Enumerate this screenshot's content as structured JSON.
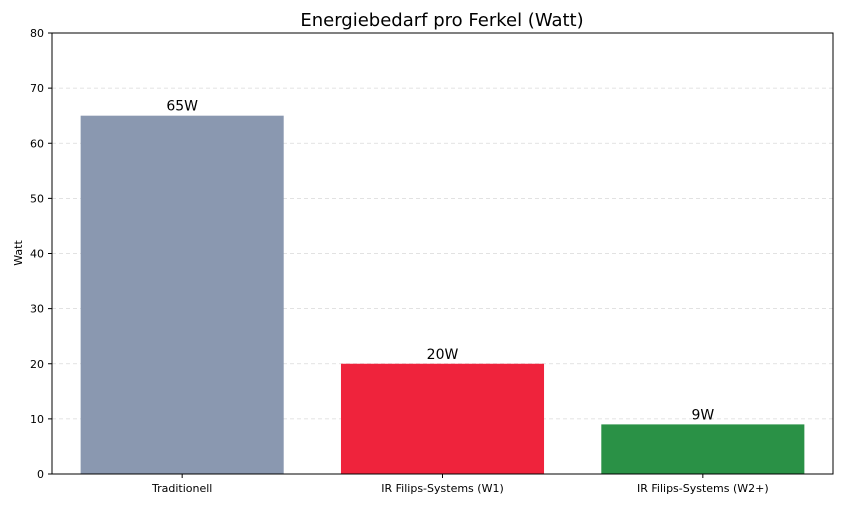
{
  "chart_data": {
    "type": "bar",
    "title": "Energiebedarf pro Ferkel (Watt)",
    "xlabel": "",
    "ylabel": "Watt",
    "ylim": [
      0,
      80
    ],
    "yticks": [
      0,
      10,
      20,
      30,
      40,
      50,
      60,
      70,
      80
    ],
    "grid": true,
    "categories": [
      "Traditionell",
      "IR Filips-Systems (W1)",
      "IR Filips-Systems (W2+)"
    ],
    "values": [
      65,
      20,
      9
    ],
    "data_labels": [
      "65W",
      "20W",
      "9W"
    ],
    "colors": [
      "#8a98b0",
      "#ef233c",
      "#2a9146"
    ]
  }
}
